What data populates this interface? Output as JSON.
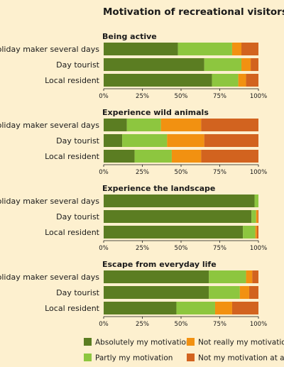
{
  "title": "Motivation of recreational visitors",
  "colors": {
    "absolutely": "#5b7d22",
    "partly": "#8dc63f",
    "not_really": "#f29111",
    "not_at_all": "#d2631f",
    "background": "#fdf0cf"
  },
  "legend": [
    {
      "key": "absolutely",
      "label": "Absolutely my motivation"
    },
    {
      "key": "not_really",
      "label": "Not really my motivation"
    },
    {
      "key": "partly",
      "label": "Partly my motivation"
    },
    {
      "key": "not_at_all",
      "label": "Not my motivation at all"
    }
  ],
  "chart_data": [
    {
      "type": "bar",
      "orientation": "horizontal",
      "stacked": true,
      "title": "Being active",
      "categories": [
        "Holiday maker several days",
        "Day tourist",
        "Local resident"
      ],
      "series": [
        {
          "name": "Absolutely my motivation",
          "key": "absolutely",
          "values": [
            48,
            65,
            70
          ]
        },
        {
          "name": "Partly my motivation",
          "key": "partly",
          "values": [
            35,
            24,
            17
          ]
        },
        {
          "name": "Not really my motivation",
          "key": "not_really",
          "values": [
            6,
            6,
            5
          ]
        },
        {
          "name": "Not my motivation at all",
          "key": "not_at_all",
          "values": [
            11,
            5,
            8
          ]
        }
      ],
      "xlim": [
        0,
        100
      ],
      "xticks": [
        "0%",
        "25%",
        "50%",
        "75%",
        "100%"
      ]
    },
    {
      "type": "bar",
      "orientation": "horizontal",
      "stacked": true,
      "title": "Experience wild animals",
      "categories": [
        "Holiday maker several days",
        "Day tourist",
        "Local resident"
      ],
      "series": [
        {
          "name": "Absolutely my motivation",
          "key": "absolutely",
          "values": [
            15,
            12,
            20
          ]
        },
        {
          "name": "Partly my motivation",
          "key": "partly",
          "values": [
            22,
            29,
            24
          ]
        },
        {
          "name": "Not really my motivation",
          "key": "not_really",
          "values": [
            26,
            24,
            19
          ]
        },
        {
          "name": "Not my motivation at all",
          "key": "not_at_all",
          "values": [
            37,
            35,
            37
          ]
        }
      ],
      "xlim": [
        0,
        100
      ],
      "xticks": [
        "0%",
        "25%",
        "50%",
        "75%",
        "100%"
      ]
    },
    {
      "type": "bar",
      "orientation": "horizontal",
      "stacked": true,
      "title": "Experience the landscape",
      "categories": [
        "Holiday maker several days",
        "Day tourist",
        "Local resident"
      ],
      "series": [
        {
          "name": "Absolutely my motivation",
          "key": "absolutely",
          "values": [
            97.5,
            95.5,
            90
          ]
        },
        {
          "name": "Partly my motivation",
          "key": "partly",
          "values": [
            2.5,
            3,
            8
          ]
        },
        {
          "name": "Not really my motivation",
          "key": "not_really",
          "values": [
            0,
            1,
            1
          ]
        },
        {
          "name": "Not my motivation at all",
          "key": "not_at_all",
          "values": [
            0,
            0.5,
            1
          ]
        }
      ],
      "xlim": [
        0,
        100
      ],
      "xticks": [
        "0%",
        "25%",
        "50%",
        "75%",
        "100%"
      ]
    },
    {
      "type": "bar",
      "orientation": "horizontal",
      "stacked": true,
      "title": "Escape from everyday life",
      "categories": [
        "Holiday maker several days",
        "Day tourist",
        "Local resident"
      ],
      "series": [
        {
          "name": "Absolutely my motivation",
          "key": "absolutely",
          "values": [
            68,
            68,
            47
          ]
        },
        {
          "name": "Partly my motivation",
          "key": "partly",
          "values": [
            24,
            20,
            25
          ]
        },
        {
          "name": "Not really my motivation",
          "key": "not_really",
          "values": [
            4,
            6,
            11
          ]
        },
        {
          "name": "Not my motivation at all",
          "key": "not_at_all",
          "values": [
            4,
            6,
            17
          ]
        }
      ],
      "xlim": [
        0,
        100
      ],
      "xticks": [
        "0%",
        "25%",
        "50%",
        "75%",
        "100%"
      ]
    }
  ]
}
